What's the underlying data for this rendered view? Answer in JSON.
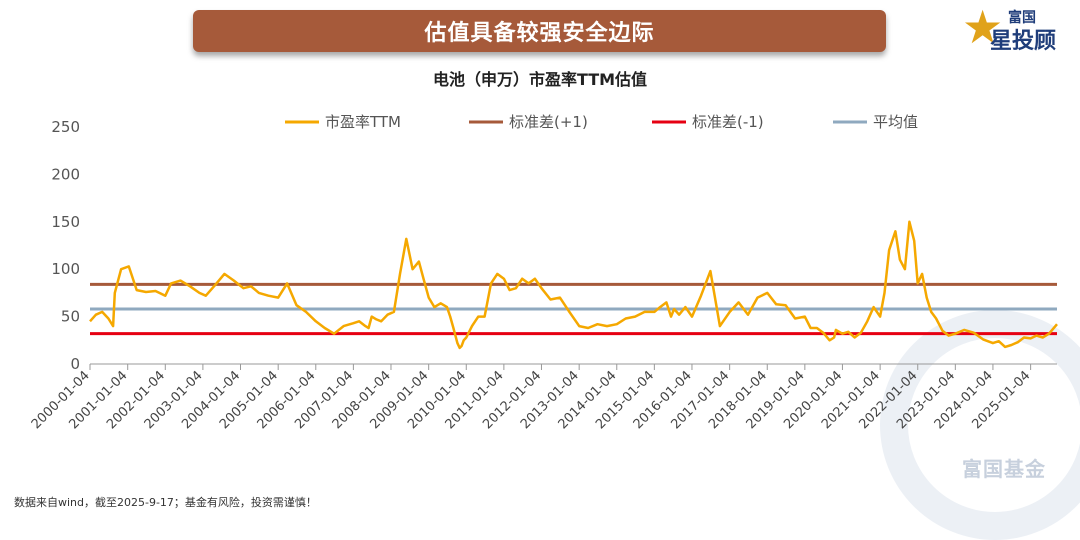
{
  "banner": {
    "title": "估值具备较强安全边际"
  },
  "logo": {
    "top": "富国",
    "main": "星投顾"
  },
  "watermark": {
    "text": "富国基金"
  },
  "footer": {
    "note": "数据来自wind，截至2025-9-17；基金有风险，投资需谨慎！"
  },
  "chart_data": {
    "type": "line",
    "title": "电池（申万）市盈率TTM估值",
    "xlabel": "",
    "ylabel": "",
    "ylim": [
      0,
      250
    ],
    "yticks": [
      0,
      50,
      100,
      150,
      200,
      250
    ],
    "xlim": [
      "2000-01-04",
      "2025-09-17"
    ],
    "xticks": [
      "2000-01-04",
      "2001-01-04",
      "2002-01-04",
      "2003-01-04",
      "2004-01-04",
      "2005-01-04",
      "2006-01-04",
      "2007-01-04",
      "2008-01-04",
      "2009-01-04",
      "2010-01-04",
      "2011-01-04",
      "2012-01-04",
      "2013-01-04",
      "2014-01-04",
      "2015-01-04",
      "2016-01-04",
      "2017-01-04",
      "2018-01-04",
      "2019-01-04",
      "2020-01-04",
      "2021-01-04",
      "2022-01-04",
      "2023-01-04",
      "2024-01-04",
      "2025-01-04"
    ],
    "grid": false,
    "legend_position": "top",
    "series": [
      {
        "name": "市盈率TTM",
        "color": "#f5a800",
        "kind": "line",
        "x": [
          "2000-01-04",
          "2000-03-01",
          "2000-05-01",
          "2000-07-01",
          "2000-08-15",
          "2000-09-01",
          "2000-11-01",
          "2001-01-15",
          "2001-04-01",
          "2001-07-01",
          "2001-10-01",
          "2002-01-04",
          "2002-03-01",
          "2002-06-01",
          "2002-09-01",
          "2002-12-01",
          "2003-02-01",
          "2003-05-01",
          "2003-08-01",
          "2003-11-01",
          "2004-02-01",
          "2004-04-15",
          "2004-07-01",
          "2004-10-01",
          "2005-01-04",
          "2005-04-01",
          "2005-07-01",
          "2005-10-01",
          "2006-01-04",
          "2006-04-01",
          "2006-07-01",
          "2006-10-01",
          "2007-01-04",
          "2007-03-01",
          "2007-05-01",
          "2007-06-01",
          "2007-07-01",
          "2007-08-15",
          "2007-10-01",
          "2007-12-01",
          "2008-02-01",
          "2008-04-01",
          "2008-06-01",
          "2008-08-01",
          "2008-10-01",
          "2008-11-15",
          "2009-01-04",
          "2009-03-01",
          "2009-05-01",
          "2009-07-01",
          "2009-08-01",
          "2009-09-01",
          "2009-09-20",
          "2009-10-10",
          "2009-11-01",
          "2009-11-20",
          "2009-12-10",
          "2010-01-04",
          "2010-03-01",
          "2010-05-01",
          "2010-07-01",
          "2010-09-01",
          "2010-11-01",
          "2011-01-04",
          "2011-03-01",
          "2011-05-01",
          "2011-07-01",
          "2011-09-01",
          "2011-11-01",
          "2012-01-04",
          "2012-04-01",
          "2012-07-01",
          "2012-10-01",
          "2013-01-04",
          "2013-04-01",
          "2013-07-01",
          "2013-10-01",
          "2014-01-04",
          "2014-04-01",
          "2014-07-01",
          "2014-10-01",
          "2015-01-04",
          "2015-03-01",
          "2015-05-01",
          "2015-06-15",
          "2015-07-15",
          "2015-09-01",
          "2015-11-01",
          "2016-01-04",
          "2016-04-01",
          "2016-07-01",
          "2016-10-01",
          "2017-01-04",
          "2017-04-01",
          "2017-07-01",
          "2017-10-01",
          "2018-01-04",
          "2018-04-01",
          "2018-07-01",
          "2018-10-01",
          "2019-01-04",
          "2019-03-01",
          "2019-05-01",
          "2019-07-01",
          "2019-09-01",
          "2019-10-15",
          "2019-11-01",
          "2020-01-04",
          "2020-03-01",
          "2020-05-01",
          "2020-07-01",
          "2020-09-01",
          "2020-11-01",
          "2021-01-04",
          "2021-02-15",
          "2021-04-01",
          "2021-06-01",
          "2021-07-15",
          "2021-09-01",
          "2021-10-15",
          "2021-12-01",
          "2022-01-04",
          "2022-02-15",
          "2022-04-01",
          "2022-05-15",
          "2022-07-01",
          "2022-09-01",
          "2022-11-01",
          "2023-01-04",
          "2023-04-01",
          "2023-07-01",
          "2023-10-01",
          "2024-01-04",
          "2024-03-01",
          "2024-05-01",
          "2024-07-01",
          "2024-09-01",
          "2024-11-01",
          "2025-01-04",
          "2025-03-01",
          "2025-05-01",
          "2025-07-01",
          "2025-09-17"
        ],
        "y": [
          45,
          52,
          55,
          48,
          40,
          75,
          100,
          103,
          78,
          76,
          77,
          72,
          85,
          88,
          82,
          75,
          72,
          83,
          95,
          88,
          80,
          82,
          75,
          72,
          70,
          85,
          62,
          55,
          45,
          38,
          32,
          40,
          43,
          45,
          40,
          38,
          50,
          47,
          45,
          52,
          55,
          95,
          132,
          100,
          108,
          90,
          70,
          60,
          64,
          60,
          50,
          38,
          30,
          22,
          17,
          19,
          25,
          28,
          40,
          50,
          50,
          85,
          95,
          90,
          78,
          80,
          90,
          85,
          90,
          80,
          68,
          70,
          55,
          40,
          38,
          42,
          40,
          42,
          48,
          50,
          55,
          55,
          60,
          65,
          50,
          58,
          52,
          60,
          50,
          72,
          98,
          40,
          55,
          65,
          52,
          70,
          75,
          63,
          62,
          48,
          50,
          38,
          38,
          33,
          25,
          28,
          36,
          32,
          34,
          28,
          33,
          45,
          60,
          50,
          75,
          120,
          140,
          110,
          100,
          150,
          130,
          85,
          95,
          70,
          55,
          48,
          35,
          30,
          32,
          36,
          33,
          26,
          22,
          24,
          18,
          20,
          23,
          28,
          27,
          30,
          28,
          32,
          42
        ]
      },
      {
        "name": "标准差(+1)",
        "color": "#a65a3a",
        "kind": "hline",
        "value": 84
      },
      {
        "name": "标准差(-1)",
        "color": "#e60012",
        "kind": "hline",
        "value": 32
      },
      {
        "name": "平均值",
        "color": "#8fa9bf",
        "kind": "hline",
        "value": 58
      }
    ]
  }
}
